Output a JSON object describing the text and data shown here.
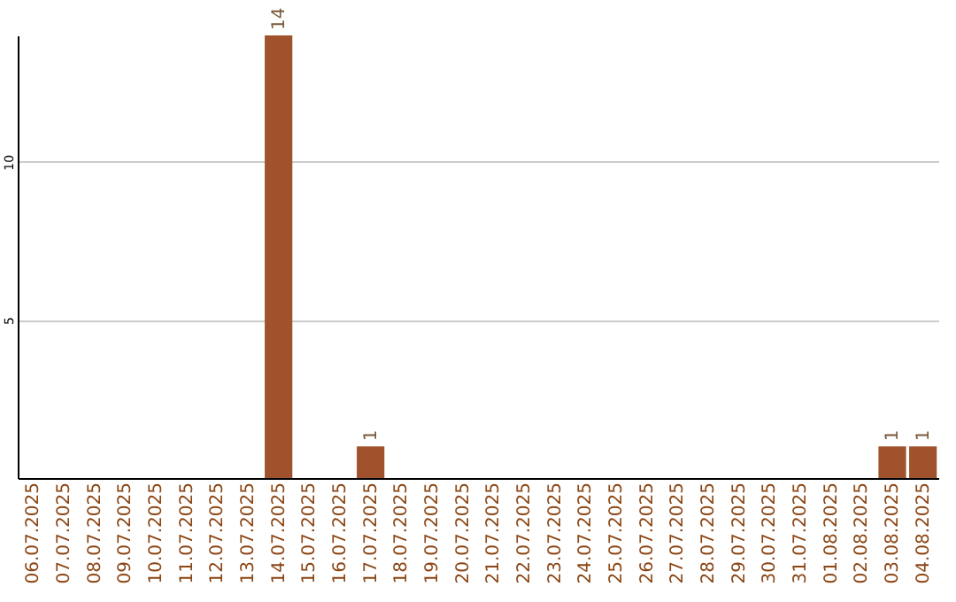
{
  "chart_data": {
    "type": "bar",
    "categories": [
      "06.07.2025",
      "07.07.2025",
      "08.07.2025",
      "09.07.2025",
      "10.07.2025",
      "11.07.2025",
      "12.07.2025",
      "13.07.2025",
      "14.07.2025",
      "15.07.2025",
      "16.07.2025",
      "17.07.2025",
      "18.07.2025",
      "19.07.2025",
      "20.07.2025",
      "21.07.2025",
      "22.07.2025",
      "23.07.2025",
      "24.07.2025",
      "25.07.2025",
      "26.07.2025",
      "27.07.2025",
      "28.07.2025",
      "29.07.2025",
      "30.07.2025",
      "31.07.2025",
      "01.08.2025",
      "02.08.2025",
      "03.08.2025",
      "04.08.2025"
    ],
    "values": [
      0,
      0,
      0,
      0,
      0,
      0,
      0,
      0,
      14,
      0,
      0,
      1,
      0,
      0,
      0,
      0,
      0,
      0,
      0,
      0,
      0,
      0,
      0,
      0,
      0,
      0,
      0,
      0,
      1,
      1
    ],
    "value_labels": [
      null,
      null,
      null,
      null,
      null,
      null,
      null,
      null,
      "14",
      null,
      null,
      "1",
      null,
      null,
      null,
      null,
      null,
      null,
      null,
      null,
      null,
      null,
      null,
      null,
      null,
      null,
      null,
      null,
      "1",
      "1"
    ],
    "color": "#a0522d",
    "ylim": [
      0,
      14
    ],
    "yticks": [
      5,
      10
    ],
    "grid": "y"
  }
}
